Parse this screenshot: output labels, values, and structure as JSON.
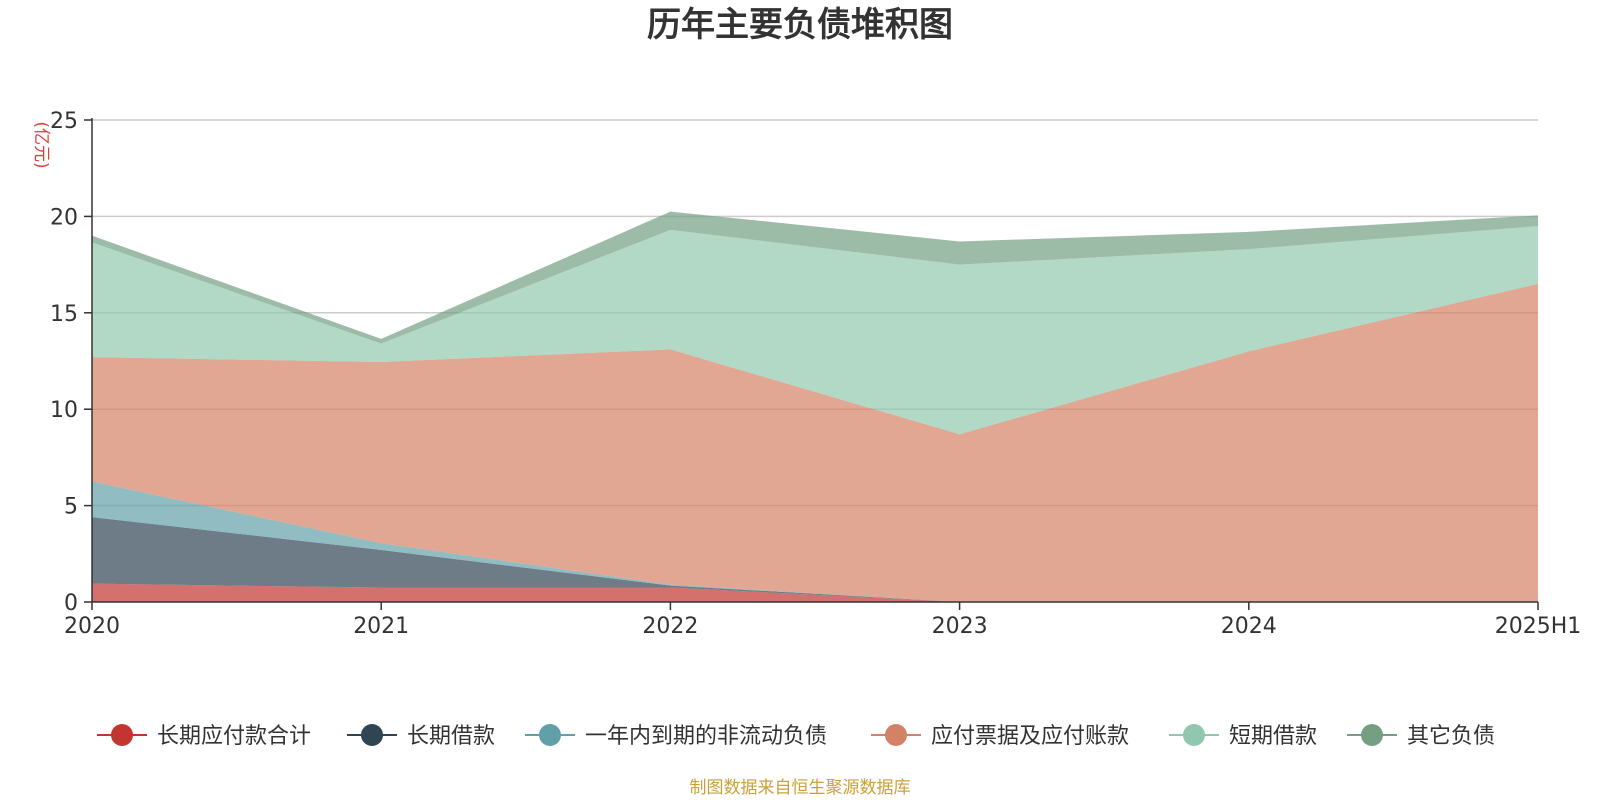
{
  "chart_data": {
    "type": "area",
    "stacked": true,
    "title": "历年主要负债堆积图",
    "ylabel": "(亿元)",
    "ylim": [
      0,
      25
    ],
    "yticks": [
      0,
      5,
      10,
      15,
      20,
      25
    ],
    "grid": true,
    "legend_position": "bottom",
    "categories": [
      "2020",
      "2021",
      "2022",
      "2023",
      "2024",
      "2025H1"
    ],
    "series": [
      {
        "name": "长期应付款合计",
        "color": "#c23531",
        "values": [
          0.95,
          0.75,
          0.75,
          0.0,
          0.0,
          0.0
        ]
      },
      {
        "name": "长期借款",
        "color": "#2f4554",
        "values": [
          3.45,
          1.95,
          0.1,
          0.0,
          0.0,
          0.0
        ]
      },
      {
        "name": "一年内到期的非流动负债",
        "color": "#61a0a8",
        "values": [
          1.85,
          0.35,
          0.05,
          0.0,
          0.0,
          0.0
        ]
      },
      {
        "name": "应付票据及应付账款",
        "color": "#d48265",
        "values": [
          6.45,
          9.4,
          12.2,
          8.7,
          13.0,
          16.5
        ]
      },
      {
        "name": "短期借款",
        "color": "#91c7ae",
        "values": [
          5.95,
          0.95,
          6.2,
          8.8,
          5.3,
          3.0
        ]
      },
      {
        "name": "其它负债",
        "color": "#749f83",
        "values": [
          0.35,
          0.25,
          0.95,
          1.2,
          0.9,
          0.55
        ]
      }
    ]
  },
  "source_note": "制图数据来自恒生聚源数据库"
}
